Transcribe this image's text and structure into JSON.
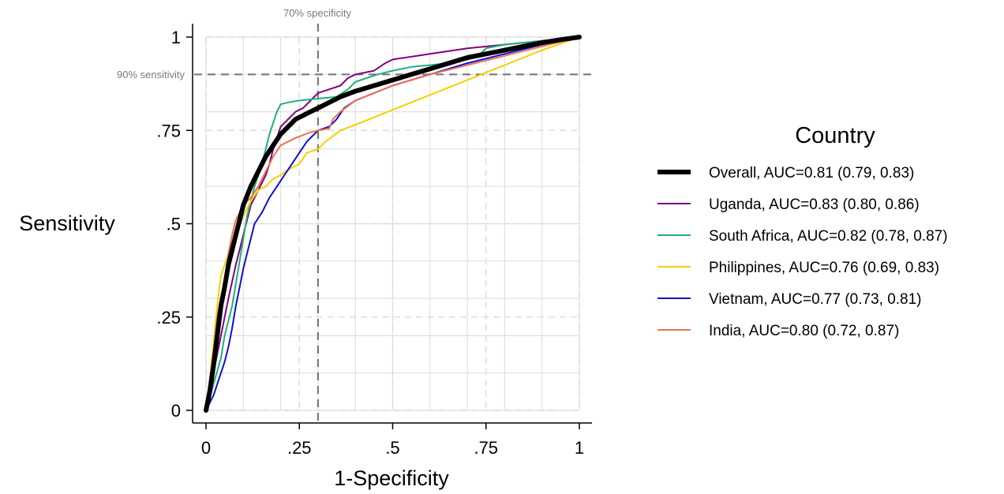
{
  "chart_data": {
    "type": "line",
    "title": "",
    "xlabel": "1-Specificity",
    "ylabel": "Sensitivity",
    "xlim": [
      0,
      1
    ],
    "ylim": [
      0,
      1
    ],
    "x_ticks": [
      0,
      0.25,
      0.5,
      0.75,
      1
    ],
    "x_tick_labels": [
      "0",
      ".25",
      ".5",
      ".75",
      "1"
    ],
    "y_ticks": [
      0,
      0.25,
      0.5,
      0.75,
      1
    ],
    "y_tick_labels": [
      "0",
      ".25",
      ".5",
      ".75",
      "1"
    ],
    "grid": true,
    "legend": {
      "title": "Country",
      "placement": "right"
    },
    "reference_lines": [
      {
        "axis": "x",
        "value": 0.3,
        "label": "70% specificity"
      },
      {
        "axis": "y",
        "value": 0.9,
        "label": "90% sensitivity"
      }
    ],
    "series": [
      {
        "name": "Overall, AUC=0.81 (0.79, 0.83)",
        "color": "#000000",
        "points": [
          [
            0,
            0
          ],
          [
            0.01,
            0.05
          ],
          [
            0.02,
            0.12
          ],
          [
            0.03,
            0.2
          ],
          [
            0.04,
            0.28
          ],
          [
            0.05,
            0.33
          ],
          [
            0.06,
            0.39
          ],
          [
            0.07,
            0.43
          ],
          [
            0.08,
            0.47
          ],
          [
            0.09,
            0.51
          ],
          [
            0.1,
            0.55
          ],
          [
            0.12,
            0.6
          ],
          [
            0.14,
            0.64
          ],
          [
            0.16,
            0.68
          ],
          [
            0.18,
            0.71
          ],
          [
            0.2,
            0.74
          ],
          [
            0.22,
            0.76
          ],
          [
            0.24,
            0.78
          ],
          [
            0.26,
            0.79
          ],
          [
            0.28,
            0.8
          ],
          [
            0.3,
            0.81
          ],
          [
            0.33,
            0.825
          ],
          [
            0.36,
            0.84
          ],
          [
            0.4,
            0.855
          ],
          [
            0.45,
            0.87
          ],
          [
            0.5,
            0.885
          ],
          [
            0.55,
            0.9
          ],
          [
            0.6,
            0.915
          ],
          [
            0.65,
            0.93
          ],
          [
            0.7,
            0.945
          ],
          [
            0.75,
            0.955
          ],
          [
            0.8,
            0.965
          ],
          [
            0.85,
            0.975
          ],
          [
            0.9,
            0.985
          ],
          [
            0.95,
            0.993
          ],
          [
            1,
            1
          ]
        ]
      },
      {
        "name": "Uganda, AUC=0.83 (0.80, 0.86)",
        "color": "#800080",
        "points": [
          [
            0,
            0
          ],
          [
            0.02,
            0.1
          ],
          [
            0.04,
            0.2
          ],
          [
            0.06,
            0.3
          ],
          [
            0.08,
            0.39
          ],
          [
            0.1,
            0.47
          ],
          [
            0.12,
            0.55
          ],
          [
            0.14,
            0.59
          ],
          [
            0.16,
            0.63
          ],
          [
            0.17,
            0.66
          ],
          [
            0.18,
            0.7
          ],
          [
            0.19,
            0.73
          ],
          [
            0.2,
            0.76
          ],
          [
            0.22,
            0.78
          ],
          [
            0.24,
            0.8
          ],
          [
            0.26,
            0.81
          ],
          [
            0.28,
            0.83
          ],
          [
            0.3,
            0.85
          ],
          [
            0.33,
            0.86
          ],
          [
            0.36,
            0.87
          ],
          [
            0.38,
            0.89
          ],
          [
            0.4,
            0.9
          ],
          [
            0.45,
            0.91
          ],
          [
            0.48,
            0.93
          ],
          [
            0.5,
            0.94
          ],
          [
            0.6,
            0.955
          ],
          [
            0.7,
            0.97
          ],
          [
            0.8,
            0.98
          ],
          [
            0.9,
            0.99
          ],
          [
            1,
            1
          ]
        ]
      },
      {
        "name": "South Africa, AUC=0.82 (0.78, 0.87)",
        "color": "#1fb07c",
        "points": [
          [
            0,
            0
          ],
          [
            0.02,
            0.07
          ],
          [
            0.04,
            0.14
          ],
          [
            0.05,
            0.2
          ],
          [
            0.07,
            0.28
          ],
          [
            0.09,
            0.4
          ],
          [
            0.11,
            0.52
          ],
          [
            0.13,
            0.6
          ],
          [
            0.15,
            0.66
          ],
          [
            0.16,
            0.7
          ],
          [
            0.17,
            0.74
          ],
          [
            0.18,
            0.77
          ],
          [
            0.19,
            0.8
          ],
          [
            0.2,
            0.82
          ],
          [
            0.22,
            0.825
          ],
          [
            0.25,
            0.83
          ],
          [
            0.3,
            0.835
          ],
          [
            0.35,
            0.84
          ],
          [
            0.38,
            0.86
          ],
          [
            0.4,
            0.88
          ],
          [
            0.43,
            0.89
          ],
          [
            0.46,
            0.9
          ],
          [
            0.5,
            0.91
          ],
          [
            0.55,
            0.92
          ],
          [
            0.6,
            0.925
          ],
          [
            0.65,
            0.93
          ],
          [
            0.7,
            0.94
          ],
          [
            0.73,
            0.95
          ],
          [
            0.75,
            0.97
          ],
          [
            0.8,
            0.98
          ],
          [
            0.9,
            0.99
          ],
          [
            1,
            1
          ]
        ]
      },
      {
        "name": "Philippines, AUC=0.76 (0.69, 0.83)",
        "color": "#f5d000",
        "points": [
          [
            0,
            0
          ],
          [
            0.01,
            0.08
          ],
          [
            0.02,
            0.18
          ],
          [
            0.03,
            0.28
          ],
          [
            0.04,
            0.36
          ],
          [
            0.06,
            0.42
          ],
          [
            0.08,
            0.47
          ],
          [
            0.1,
            0.52
          ],
          [
            0.12,
            0.56
          ],
          [
            0.14,
            0.59
          ],
          [
            0.16,
            0.6
          ],
          [
            0.18,
            0.62
          ],
          [
            0.2,
            0.63
          ],
          [
            0.22,
            0.645
          ],
          [
            0.25,
            0.66
          ],
          [
            0.27,
            0.69
          ],
          [
            0.3,
            0.7
          ],
          [
            0.32,
            0.72
          ],
          [
            0.36,
            0.75
          ],
          [
            0.4,
            0.765
          ],
          [
            0.5,
            0.805
          ],
          [
            0.6,
            0.845
          ],
          [
            0.7,
            0.885
          ],
          [
            0.8,
            0.925
          ],
          [
            0.9,
            0.965
          ],
          [
            1,
            1
          ]
        ]
      },
      {
        "name": "Vietnam, AUC=0.77 (0.73, 0.81)",
        "color": "#1010cc",
        "points": [
          [
            0,
            0
          ],
          [
            0.01,
            0.02
          ],
          [
            0.02,
            0.04
          ],
          [
            0.03,
            0.07
          ],
          [
            0.04,
            0.1
          ],
          [
            0.05,
            0.13
          ],
          [
            0.06,
            0.17
          ],
          [
            0.07,
            0.22
          ],
          [
            0.08,
            0.28
          ],
          [
            0.09,
            0.33
          ],
          [
            0.1,
            0.38
          ],
          [
            0.11,
            0.42
          ],
          [
            0.12,
            0.46
          ],
          [
            0.13,
            0.5
          ],
          [
            0.15,
            0.53
          ],
          [
            0.17,
            0.57
          ],
          [
            0.19,
            0.6
          ],
          [
            0.21,
            0.63
          ],
          [
            0.23,
            0.66
          ],
          [
            0.25,
            0.69
          ],
          [
            0.27,
            0.72
          ],
          [
            0.29,
            0.74
          ],
          [
            0.3,
            0.75
          ],
          [
            0.33,
            0.76
          ],
          [
            0.35,
            0.78
          ],
          [
            0.37,
            0.81
          ],
          [
            0.4,
            0.83
          ],
          [
            0.45,
            0.85
          ],
          [
            0.5,
            0.87
          ],
          [
            0.6,
            0.9
          ],
          [
            0.7,
            0.93
          ],
          [
            0.8,
            0.955
          ],
          [
            0.9,
            0.98
          ],
          [
            1,
            1
          ]
        ]
      },
      {
        "name": "India, AUC=0.80 (0.72, 0.87)",
        "color": "#f07050",
        "points": [
          [
            0,
            0
          ],
          [
            0.02,
            0.15
          ],
          [
            0.03,
            0.25
          ],
          [
            0.05,
            0.35
          ],
          [
            0.06,
            0.42
          ],
          [
            0.07,
            0.47
          ],
          [
            0.08,
            0.51
          ],
          [
            0.09,
            0.53
          ],
          [
            0.1,
            0.55
          ],
          [
            0.12,
            0.57
          ],
          [
            0.14,
            0.6
          ],
          [
            0.16,
            0.64
          ],
          [
            0.18,
            0.68
          ],
          [
            0.2,
            0.71
          ],
          [
            0.24,
            0.73
          ],
          [
            0.28,
            0.745
          ],
          [
            0.3,
            0.75
          ],
          [
            0.33,
            0.755
          ],
          [
            0.34,
            0.78
          ],
          [
            0.36,
            0.8
          ],
          [
            0.4,
            0.83
          ],
          [
            0.45,
            0.85
          ],
          [
            0.5,
            0.87
          ],
          [
            0.6,
            0.9
          ],
          [
            0.7,
            0.925
          ],
          [
            0.8,
            0.95
          ],
          [
            0.9,
            0.975
          ],
          [
            1,
            1
          ]
        ]
      }
    ]
  }
}
